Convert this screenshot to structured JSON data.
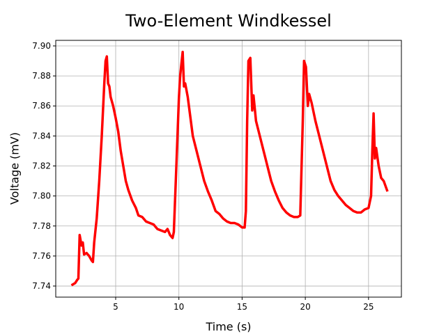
{
  "chart_data": {
    "type": "line",
    "title": "Two-Element Windkessel",
    "x_label": "Time (s)",
    "y_label": "Voltage (mV)",
    "color": "#ff0000",
    "grid": true,
    "x": [
      1.5,
      1.8,
      1.95,
      2.05,
      2.15,
      2.3,
      2.4,
      2.5,
      2.7,
      2.9,
      3.1,
      3.2,
      3.3,
      3.5,
      3.7,
      3.9,
      4.1,
      4.2,
      4.3,
      4.4,
      4.5,
      4.6,
      4.8,
      5.0,
      5.2,
      5.4,
      5.6,
      5.8,
      6.0,
      6.3,
      6.6,
      6.8,
      7.1,
      7.4,
      7.7,
      8.0,
      8.3,
      8.6,
      8.9,
      9.1,
      9.3,
      9.5,
      9.6,
      9.8,
      10.0,
      10.1,
      10.3,
      10.4,
      10.5,
      10.7,
      10.9,
      11.1,
      11.4,
      11.7,
      12.0,
      12.3,
      12.6,
      12.9,
      13.2,
      13.5,
      13.8,
      14.1,
      14.4,
      14.7,
      15.0,
      15.2,
      15.3,
      15.4,
      15.5,
      15.65,
      15.8,
      15.9,
      16.1,
      16.4,
      16.7,
      17.0,
      17.3,
      17.6,
      17.9,
      18.2,
      18.5,
      18.8,
      19.1,
      19.4,
      19.6,
      19.8,
      19.9,
      20.05,
      20.2,
      20.3,
      20.5,
      20.8,
      21.1,
      21.4,
      21.7,
      22.0,
      22.3,
      22.6,
      22.9,
      23.2,
      23.5,
      23.8,
      24.1,
      24.4,
      24.7,
      25.0,
      25.2,
      25.3,
      25.4,
      25.5,
      25.6,
      25.8,
      26.0,
      26.2,
      26.5
    ],
    "values": [
      7.7405,
      7.742,
      7.744,
      7.745,
      7.774,
      7.767,
      7.769,
      7.761,
      7.762,
      7.76,
      7.757,
      7.756,
      7.769,
      7.785,
      7.81,
      7.84,
      7.875,
      7.89,
      7.893,
      7.875,
      7.873,
      7.866,
      7.86,
      7.852,
      7.843,
      7.83,
      7.82,
      7.81,
      7.804,
      7.797,
      7.792,
      7.787,
      7.786,
      7.783,
      7.782,
      7.781,
      7.778,
      7.777,
      7.776,
      7.778,
      7.774,
      7.772,
      7.776,
      7.82,
      7.865,
      7.88,
      7.896,
      7.873,
      7.875,
      7.866,
      7.853,
      7.84,
      7.83,
      7.82,
      7.81,
      7.803,
      7.797,
      7.79,
      7.788,
      7.785,
      7.783,
      7.782,
      7.782,
      7.781,
      7.779,
      7.779,
      7.79,
      7.85,
      7.89,
      7.892,
      7.857,
      7.867,
      7.85,
      7.84,
      7.83,
      7.82,
      7.81,
      7.803,
      7.797,
      7.792,
      7.789,
      7.787,
      7.786,
      7.786,
      7.787,
      7.85,
      7.89,
      7.886,
      7.86,
      7.868,
      7.862,
      7.85,
      7.84,
      7.83,
      7.82,
      7.81,
      7.804,
      7.8,
      7.797,
      7.794,
      7.792,
      7.79,
      7.789,
      7.789,
      7.791,
      7.792,
      7.8,
      7.83,
      7.855,
      7.825,
      7.832,
      7.82,
      7.812,
      7.81,
      7.803
    ],
    "xlim": [
      0.26,
      27.6
    ],
    "xticks": [
      5,
      10,
      15,
      20,
      25
    ],
    "ylim": [
      7.7326,
      7.9037
    ],
    "yticks": [
      7.74,
      7.76,
      7.78,
      {
        "value": 7.8,
        "label": "7.80"
      },
      7.82,
      7.84,
      7.86,
      7.88,
      {
        "value": 7.9,
        "label": "7.90"
      }
    ]
  }
}
